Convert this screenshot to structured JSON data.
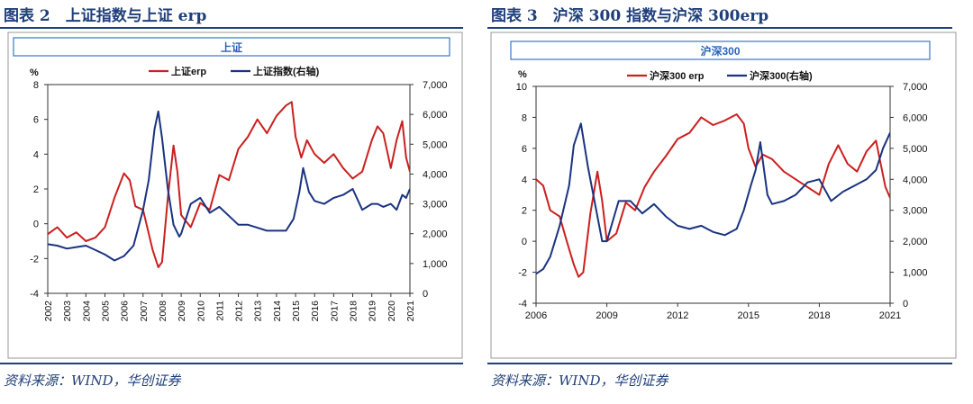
{
  "figure1": {
    "caption": "图表 2　上证指数与上证 erp",
    "source": "资料来源：WIND，华创证券",
    "chart_data": {
      "type": "line",
      "title": "上证",
      "y_unit_label": "%",
      "ylim": [
        -4,
        8
      ],
      "yticks": [
        "-4",
        "-2",
        "0",
        "2",
        "4",
        "6",
        "8"
      ],
      "y2lim": [
        0,
        7000
      ],
      "y2ticks": [
        "0",
        "1,000",
        "2,000",
        "3,000",
        "4,000",
        "5,000",
        "6,000",
        "7,000"
      ],
      "xlim": [
        2002,
        2021
      ],
      "xticks": [
        "2002",
        "2003",
        "2004",
        "2005",
        "2006",
        "2007",
        "2008",
        "2009",
        "2010",
        "2011",
        "2012",
        "2013",
        "2014",
        "2015",
        "2016",
        "2017",
        "2018",
        "2019",
        "2020",
        "2021"
      ],
      "colors": {
        "erp": "#cc1f1f",
        "index": "#1a3380"
      },
      "series": [
        {
          "name": "上证erp",
          "axis": "left",
          "x": [
            2002.0,
            2002.5,
            2003.0,
            2003.5,
            2004.0,
            2004.5,
            2005.0,
            2005.5,
            2006.0,
            2006.3,
            2006.6,
            2007.0,
            2007.5,
            2007.8,
            2008.0,
            2008.3,
            2008.6,
            2008.8,
            2009.0,
            2009.5,
            2010.0,
            2010.5,
            2011.0,
            2011.5,
            2012.0,
            2012.5,
            2013.0,
            2013.5,
            2014.0,
            2014.5,
            2014.8,
            2015.0,
            2015.3,
            2015.6,
            2016.0,
            2016.5,
            2017.0,
            2017.5,
            2018.0,
            2018.5,
            2019.0,
            2019.3,
            2019.6,
            2020.0,
            2020.3,
            2020.6,
            2020.8,
            2021.0
          ],
          "values": [
            -0.6,
            -0.2,
            -0.8,
            -0.5,
            -1.0,
            -0.8,
            -0.2,
            1.5,
            2.9,
            2.5,
            1.0,
            0.8,
            -1.5,
            -2.5,
            -2.2,
            1.5,
            4.5,
            3.0,
            0.5,
            -0.2,
            1.2,
            0.8,
            2.8,
            2.5,
            4.3,
            5.0,
            6.0,
            5.2,
            6.2,
            6.8,
            7.0,
            5.0,
            3.8,
            4.8,
            4.0,
            3.5,
            4.0,
            3.2,
            2.6,
            3.0,
            4.8,
            5.6,
            5.2,
            3.2,
            4.8,
            5.9,
            3.8,
            3.0
          ]
        },
        {
          "name": "上证指数(右轴)",
          "axis": "right",
          "x": [
            2002.0,
            2002.5,
            2003.0,
            2003.5,
            2004.0,
            2004.5,
            2005.0,
            2005.5,
            2006.0,
            2006.5,
            2007.0,
            2007.3,
            2007.6,
            2007.8,
            2008.0,
            2008.3,
            2008.6,
            2008.9,
            2009.0,
            2009.5,
            2010.0,
            2010.5,
            2011.0,
            2011.5,
            2012.0,
            2012.5,
            2013.0,
            2013.5,
            2014.0,
            2014.5,
            2014.9,
            2015.2,
            2015.4,
            2015.7,
            2016.0,
            2016.5,
            2017.0,
            2017.5,
            2018.0,
            2018.5,
            2019.0,
            2019.3,
            2019.6,
            2020.0,
            2020.3,
            2020.6,
            2020.8,
            2021.0
          ],
          "values": [
            1650,
            1600,
            1500,
            1550,
            1600,
            1450,
            1300,
            1100,
            1250,
            1600,
            2800,
            3800,
            5500,
            6100,
            5200,
            3500,
            2300,
            1900,
            2000,
            3000,
            3200,
            2700,
            2900,
            2600,
            2300,
            2300,
            2200,
            2100,
            2100,
            2100,
            2500,
            3400,
            4200,
            3400,
            3100,
            3000,
            3200,
            3300,
            3500,
            2800,
            3000,
            3000,
            2900,
            3000,
            2800,
            3300,
            3200,
            3500
          ]
        }
      ]
    }
  },
  "figure2": {
    "caption": "图表 3　沪深 300 指数与沪深 300erp",
    "source": "资料来源：WIND，华创证券",
    "chart_data": {
      "type": "line",
      "title": "沪深300",
      "y_unit_label": "%",
      "ylim": [
        -4,
        10
      ],
      "yticks": [
        "-4",
        "-2",
        "0",
        "2",
        "4",
        "6",
        "8",
        "10"
      ],
      "y2lim": [
        0,
        7000
      ],
      "y2ticks": [
        "0",
        "1,000",
        "2,000",
        "3,000",
        "4,000",
        "5,000",
        "6,000",
        "7,000"
      ],
      "xlim": [
        2006,
        2021
      ],
      "xticks": [
        "2006",
        "2009",
        "2012",
        "2015",
        "2018",
        "2021"
      ],
      "colors": {
        "erp": "#cc1f1f",
        "index": "#1a3380"
      },
      "series": [
        {
          "name": "沪深300 erp",
          "axis": "left",
          "x": [
            2006.0,
            2006.3,
            2006.6,
            2007.0,
            2007.3,
            2007.6,
            2007.8,
            2008.0,
            2008.3,
            2008.6,
            2008.8,
            2009.0,
            2009.4,
            2009.8,
            2010.2,
            2010.6,
            2011.0,
            2011.5,
            2012.0,
            2012.5,
            2013.0,
            2013.5,
            2014.0,
            2014.5,
            2014.8,
            2015.0,
            2015.3,
            2015.6,
            2016.0,
            2016.5,
            2017.0,
            2017.5,
            2018.0,
            2018.4,
            2018.8,
            2019.2,
            2019.6,
            2020.0,
            2020.4,
            2020.8,
            2021.0
          ],
          "values": [
            4.0,
            3.6,
            2.0,
            1.6,
            0.0,
            -1.5,
            -2.3,
            -2.0,
            1.8,
            4.5,
            2.6,
            0.0,
            0.5,
            2.5,
            2.0,
            3.5,
            4.5,
            5.5,
            6.6,
            7.0,
            8.0,
            7.5,
            7.8,
            8.2,
            7.6,
            6.0,
            4.8,
            5.6,
            5.3,
            4.5,
            4.0,
            3.5,
            3.0,
            5.0,
            6.2,
            5.0,
            4.5,
            5.8,
            6.5,
            3.5,
            2.8
          ]
        },
        {
          "name": "沪深300(右轴)",
          "axis": "right",
          "x": [
            2006.0,
            2006.3,
            2006.6,
            2007.0,
            2007.4,
            2007.6,
            2007.9,
            2008.2,
            2008.5,
            2008.8,
            2009.0,
            2009.5,
            2010.0,
            2010.5,
            2011.0,
            2011.5,
            2012.0,
            2012.5,
            2013.0,
            2013.5,
            2014.0,
            2014.5,
            2014.8,
            2015.1,
            2015.3,
            2015.5,
            2015.8,
            2016.0,
            2016.5,
            2017.0,
            2017.5,
            2018.0,
            2018.5,
            2019.0,
            2019.5,
            2020.0,
            2020.4,
            2020.7,
            2021.0
          ],
          "values": [
            950,
            1100,
            1500,
            2500,
            3800,
            5100,
            5800,
            4400,
            3200,
            2000,
            2000,
            3300,
            3300,
            2900,
            3200,
            2800,
            2500,
            2400,
            2500,
            2300,
            2200,
            2400,
            3000,
            3800,
            4300,
            5200,
            3500,
            3200,
            3300,
            3500,
            3900,
            4000,
            3300,
            3600,
            3800,
            4000,
            4300,
            5000,
            5500
          ]
        }
      ]
    }
  }
}
